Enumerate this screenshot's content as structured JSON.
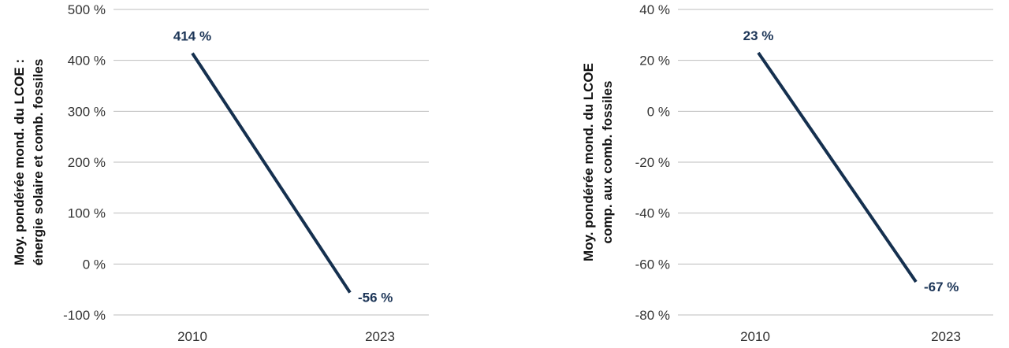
{
  "chart_data": [
    {
      "type": "line",
      "title": "",
      "ylabel_lines": [
        "Moy. pondérée mond. du LCOE :",
        "énergie solaire et comb. fossiles"
      ],
      "categories": [
        "2010",
        "2023"
      ],
      "series": [
        {
          "values": [
            414,
            -56
          ]
        }
      ],
      "data_labels": [
        "414 %",
        "-56 %"
      ],
      "y_ticks": [
        500,
        400,
        300,
        200,
        100,
        0,
        -100
      ],
      "y_tick_labels": [
        "500 %",
        "400 %",
        "300 %",
        "200 %",
        "100 %",
        "0 %",
        "-100 %"
      ],
      "ylim": [
        -100,
        500
      ],
      "grid": true,
      "legend": "none"
    },
    {
      "type": "line",
      "title": "",
      "ylabel_lines": [
        "Moy. pondérée mond. du LCOE",
        "comp. aux comb. fossiles"
      ],
      "categories": [
        "2010",
        "2023"
      ],
      "series": [
        {
          "values": [
            23,
            -67
          ]
        }
      ],
      "data_labels": [
        "23 %",
        "-67 %"
      ],
      "y_ticks": [
        40,
        20,
        0,
        -20,
        -40,
        -60,
        -80
      ],
      "y_tick_labels": [
        "40 %",
        "20 %",
        "0 %",
        "-20 %",
        "-40 %",
        "-60 %",
        "-80 %"
      ],
      "ylim": [
        -80,
        40
      ],
      "grid": true,
      "legend": "none"
    }
  ],
  "colors": {
    "line": "#15304f",
    "grid": "#bdbdbd",
    "label": "#1c3557"
  }
}
